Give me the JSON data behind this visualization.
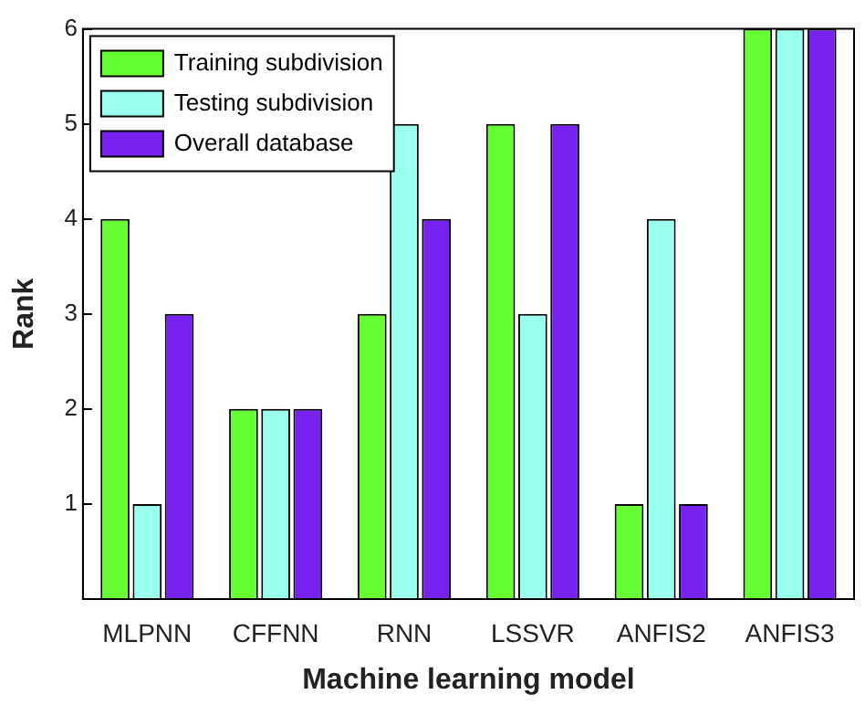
{
  "chart_data": {
    "type": "bar",
    "xlabel": "Machine learning model",
    "ylabel": "Rank",
    "categories": [
      "MLPNN",
      "CFFNN",
      "RNN",
      "LSSVR",
      "ANFIS2",
      "ANFIS3"
    ],
    "series": [
      {
        "name": "Training subdivision",
        "color": "#66ff33",
        "values": [
          4,
          2,
          3,
          5,
          1,
          6
        ]
      },
      {
        "name": "Testing subdivision",
        "color": "#99ffee",
        "values": [
          1,
          2,
          5,
          3,
          4,
          6
        ]
      },
      {
        "name": "Overall database",
        "color": "#7722ee",
        "values": [
          3,
          2,
          4,
          5,
          1,
          6
        ]
      }
    ],
    "ylim": [
      0,
      6
    ],
    "yticks": [
      1,
      2,
      3,
      4,
      5,
      6
    ],
    "grid": false,
    "legend": "top left"
  }
}
